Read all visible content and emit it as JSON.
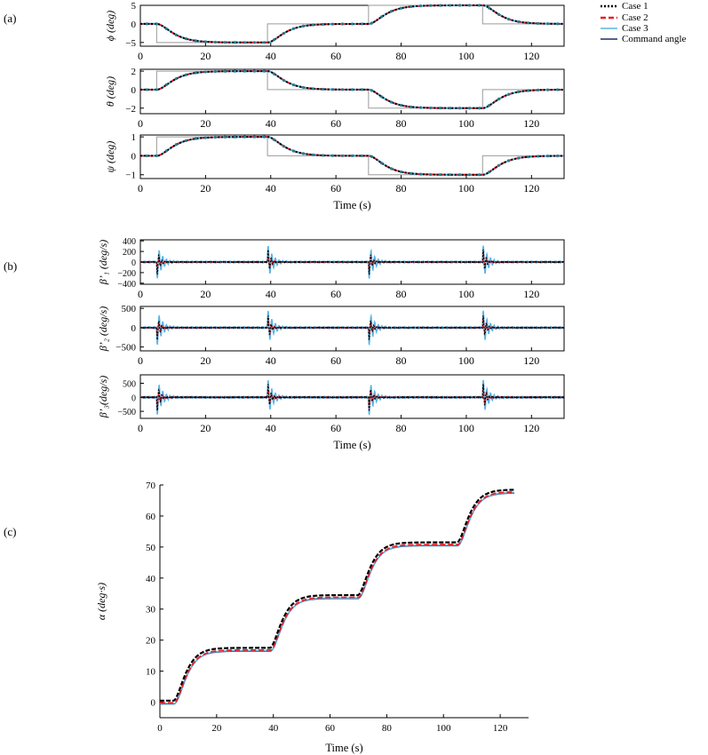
{
  "panel_labels": [
    "(a)",
    "(b)",
    "(c)"
  ],
  "legend": {
    "entries": [
      {
        "label": "Case 1",
        "color": "#000000",
        "style": "dotted"
      },
      {
        "label": "Case 2",
        "color": "#e8202a",
        "style": "dashed"
      },
      {
        "label": "Case 3",
        "color": "#5ab4e6",
        "style": "solid"
      },
      {
        "label": "Command angle",
        "color": "#1f2a6b",
        "style": "solid"
      }
    ]
  },
  "colors": {
    "case1": "#000000",
    "case2": "#e8202a",
    "case3": "#5ab4e6",
    "command": "#1f2a6b",
    "command_gray": "#9a9a9a"
  },
  "chart_data": [
    {
      "type": "line",
      "panel": "(a)",
      "id": "phi",
      "ylabel": "ϕ (deg)",
      "xlabel": "",
      "xlim": [
        0,
        130
      ],
      "ylim": [
        -6,
        5
      ],
      "xticks": [
        0,
        20,
        40,
        60,
        80,
        100,
        120
      ],
      "yticks": [
        -5,
        0,
        5
      ],
      "command_steps": [
        [
          0,
          0
        ],
        [
          5,
          -5
        ],
        [
          39,
          0
        ],
        [
          70,
          5
        ],
        [
          105,
          0
        ]
      ],
      "response_tau": 3.0
    },
    {
      "type": "line",
      "panel": "(a)",
      "id": "theta",
      "ylabel": "θ (deg)",
      "xlabel": "",
      "xlim": [
        0,
        130
      ],
      "ylim": [
        -2.6,
        2.2
      ],
      "xticks": [
        0,
        20,
        40,
        60,
        80,
        100,
        120
      ],
      "yticks": [
        -2,
        0,
        2
      ],
      "command_steps": [
        [
          0,
          0
        ],
        [
          5,
          2
        ],
        [
          39,
          0
        ],
        [
          70,
          -2
        ],
        [
          105,
          0
        ]
      ],
      "response_tau": 3.0
    },
    {
      "type": "line",
      "panel": "(a)",
      "id": "psi",
      "ylabel": "ψ (deg)",
      "xlabel": "Time (s)",
      "xlim": [
        0,
        130
      ],
      "ylim": [
        -1.2,
        1.1
      ],
      "xticks": [
        0,
        20,
        40,
        60,
        80,
        100,
        120
      ],
      "yticks": [
        -1,
        0,
        1
      ],
      "command_steps": [
        [
          0,
          0
        ],
        [
          5,
          1
        ],
        [
          39,
          0
        ],
        [
          70,
          -1
        ],
        [
          105,
          0
        ]
      ],
      "response_tau": 3.0
    },
    {
      "type": "line",
      "panel": "(b)",
      "id": "beta1",
      "ylabel": "β’₁ (deg/s)",
      "xlabel": "",
      "xlim": [
        0,
        130
      ],
      "ylim": [
        -420,
        420
      ],
      "xticks": [
        0,
        20,
        40,
        60,
        80,
        100,
        120
      ],
      "yticks": [
        -400,
        -200,
        0,
        200,
        400
      ],
      "events": [
        5,
        39,
        70,
        105
      ],
      "peak_amplitude": [
        300,
        200,
        350
      ]
    },
    {
      "type": "line",
      "panel": "(b)",
      "id": "beta2",
      "ylabel": "β’₂ (deg/s)",
      "xlabel": "",
      "xlim": [
        0,
        130
      ],
      "ylim": [
        -600,
        550
      ],
      "xticks": [
        0,
        20,
        40,
        60,
        80,
        100,
        120
      ],
      "yticks": [
        -500,
        0,
        500
      ],
      "events": [
        5,
        39,
        70,
        105
      ],
      "peak_amplitude": [
        400,
        300,
        500
      ]
    },
    {
      "type": "line",
      "panel": "(b)",
      "id": "beta3",
      "ylabel": "β’₃(deg/s)",
      "xlabel": "Time (s)",
      "xlim": [
        0,
        130
      ],
      "ylim": [
        -750,
        800
      ],
      "xticks": [
        0,
        20,
        40,
        60,
        80,
        100,
        120
      ],
      "yticks": [
        -500,
        0,
        500
      ],
      "events": [
        5,
        39,
        70,
        105
      ],
      "peak_amplitude": [
        600,
        500,
        700
      ]
    },
    {
      "type": "line",
      "panel": "(c)",
      "id": "alpha",
      "ylabel": "α (deg·s)",
      "xlabel": "Time (s)",
      "xlim": [
        0,
        130
      ],
      "ylim": [
        -5,
        70
      ],
      "xticks": [
        0,
        20,
        40,
        60,
        80,
        100,
        120
      ],
      "yticks": [
        0,
        10,
        20,
        30,
        40,
        50,
        60,
        70
      ],
      "step_times": [
        5,
        39,
        70,
        105
      ],
      "plateaus": [
        0,
        17,
        34,
        51,
        68
      ],
      "response_tau": 2.5
    }
  ]
}
